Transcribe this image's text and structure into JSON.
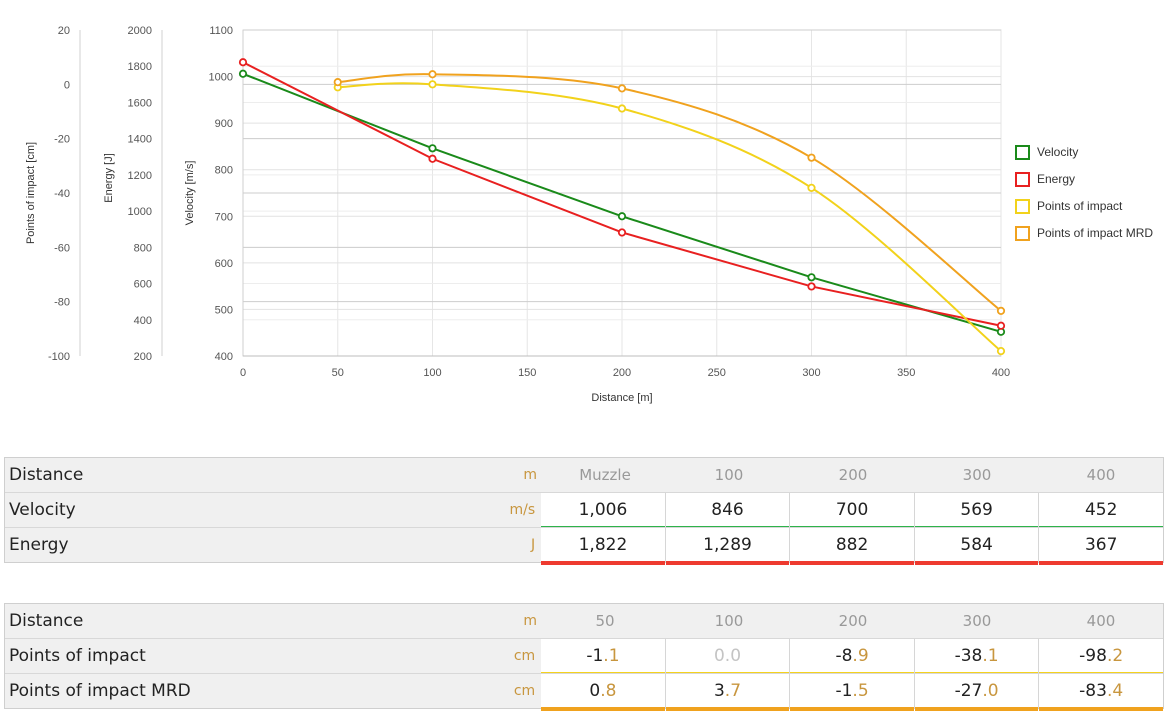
{
  "chart_data": {
    "type": "line",
    "xlabel": "Distance [m]",
    "xlim": [
      0,
      400
    ],
    "xticks": [
      0,
      50,
      100,
      150,
      200,
      250,
      300,
      350,
      400
    ],
    "axes": {
      "poi": {
        "label": "Points of impact [cm]",
        "ylim": [
          -100,
          20
        ],
        "ticks": [
          20,
          0,
          -20,
          -40,
          -60,
          -80,
          -100
        ]
      },
      "energy": {
        "label": "Energy [J]",
        "ylim": [
          200,
          2000
        ],
        "ticks": [
          2000,
          1800,
          1600,
          1400,
          1200,
          1000,
          800,
          600,
          400,
          200
        ]
      },
      "velocity": {
        "label": "Velocity [m/s]",
        "ylim": [
          400,
          1100
        ],
        "ticks": [
          1100,
          1000,
          900,
          800,
          700,
          600,
          500,
          400
        ]
      }
    },
    "grid": true,
    "legend_position": "right",
    "series": [
      {
        "name": "Velocity",
        "axis": "velocity",
        "color": "#1a8a1a",
        "x": [
          0,
          100,
          200,
          300,
          400
        ],
        "y": [
          1006,
          846,
          700,
          569,
          452
        ]
      },
      {
        "name": "Energy",
        "axis": "energy",
        "color": "#e82020",
        "x": [
          0,
          100,
          200,
          300,
          400
        ],
        "y": [
          1822,
          1289,
          882,
          584,
          367
        ]
      },
      {
        "name": "Points of impact",
        "axis": "poi",
        "color": "#f2d21b",
        "x": [
          50,
          100,
          200,
          300,
          400
        ],
        "y": [
          -1.1,
          0.0,
          -8.9,
          -38.1,
          -98.2
        ]
      },
      {
        "name": "Points of impact MRD",
        "axis": "poi",
        "color": "#f0a21e",
        "x": [
          50,
          100,
          200,
          300,
          400
        ],
        "y": [
          0.8,
          3.7,
          -1.5,
          -27.0,
          -83.4
        ]
      }
    ]
  },
  "table1": {
    "header": {
      "label": "Distance",
      "unit": "m",
      "cols": [
        "Muzzle",
        "100",
        "200",
        "300",
        "400"
      ]
    },
    "rows": [
      {
        "label": "Velocity",
        "unit": "m/s",
        "values": [
          "1,006",
          "846",
          "700",
          "569",
          "452"
        ],
        "color": "#2db34a"
      },
      {
        "label": "Energy",
        "unit": "J",
        "values": [
          "1,822",
          "1,289",
          "882",
          "584",
          "367"
        ],
        "color": "#ee3a2f"
      }
    ]
  },
  "table2": {
    "header": {
      "label": "Distance",
      "unit": "m",
      "cols": [
        "50",
        "100",
        "200",
        "300",
        "400"
      ]
    },
    "rows": [
      {
        "label": "Points of impact",
        "unit": "cm",
        "values": [
          [
            "-1",
            ".1"
          ],
          [
            "0",
            ".0"
          ],
          [
            "-8",
            ".9"
          ],
          [
            "-38",
            ".1"
          ],
          [
            "-98",
            ".2"
          ]
        ],
        "muted": [
          false,
          true,
          false,
          false,
          false
        ],
        "color": "#f4d21f"
      },
      {
        "label": "Points of impact MRD",
        "unit": "cm",
        "values": [
          [
            "0",
            ".8"
          ],
          [
            "3",
            ".7"
          ],
          [
            "-1",
            ".5"
          ],
          [
            "-27",
            ".0"
          ],
          [
            "-83",
            ".4"
          ]
        ],
        "muted": [
          false,
          false,
          false,
          false,
          false
        ],
        "color": "#f0a21e"
      }
    ]
  }
}
